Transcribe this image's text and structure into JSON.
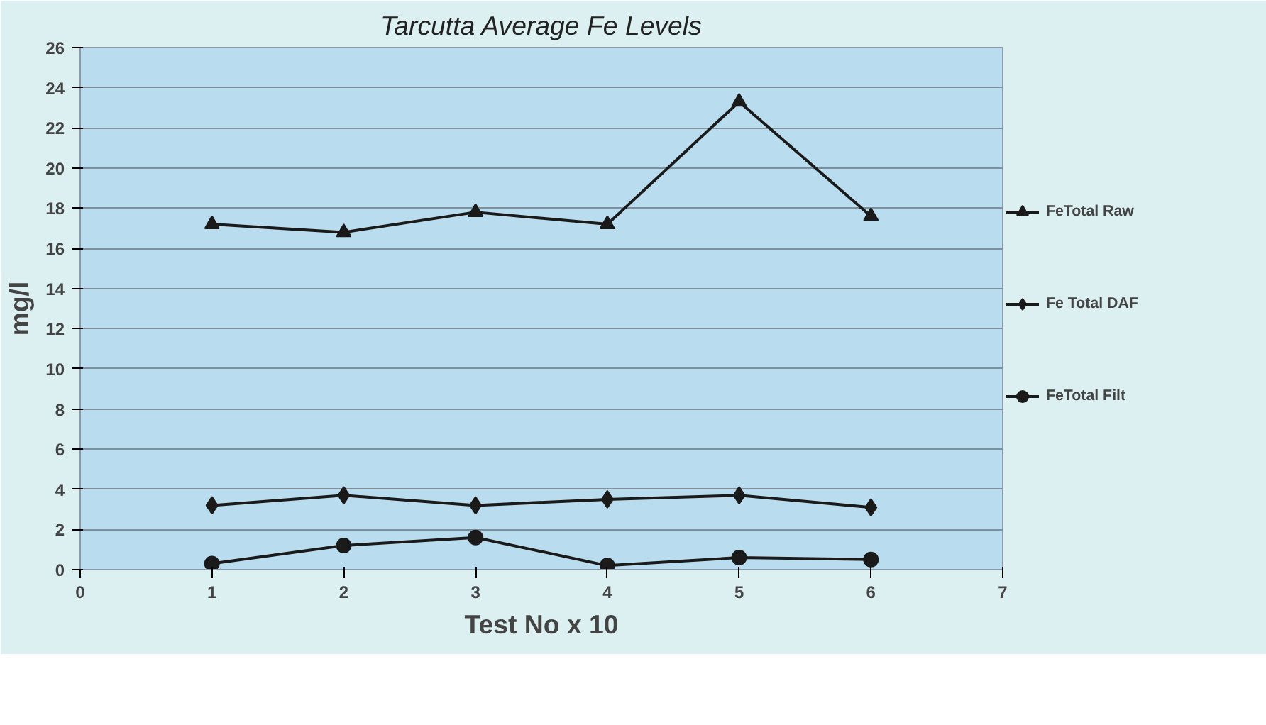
{
  "chart_data": {
    "type": "line",
    "title": "Tarcutta Average Fe Levels",
    "xlabel": "Test No x 10",
    "ylabel": "mg/l",
    "x": [
      1,
      2,
      3,
      4,
      5,
      6
    ],
    "series": [
      {
        "name": "FeTotal Raw",
        "color": "#1a1a1a",
        "marker": "triangle",
        "values": [
          17.2,
          16.8,
          17.8,
          17.2,
          23.3,
          17.6
        ]
      },
      {
        "name": "Fe Total DAF",
        "color": "#1a1a1a",
        "marker": "diamond",
        "values": [
          3.2,
          3.7,
          3.2,
          3.5,
          3.7,
          3.1
        ]
      },
      {
        "name": "FeTotal Filt",
        "color": "#1a1a1a",
        "marker": "circle",
        "values": [
          0.3,
          1.2,
          1.6,
          0.2,
          0.6,
          0.5
        ]
      }
    ],
    "xlim": [
      0,
      7
    ],
    "xticks": [
      0,
      1,
      2,
      3,
      4,
      5,
      6,
      7
    ],
    "ylim": [
      0,
      26
    ],
    "yticks": [
      0,
      2,
      4,
      6,
      8,
      10,
      12,
      14,
      16,
      18,
      20,
      22,
      24,
      26
    ],
    "grid": "y",
    "legend": "right",
    "line_style": "solid"
  }
}
